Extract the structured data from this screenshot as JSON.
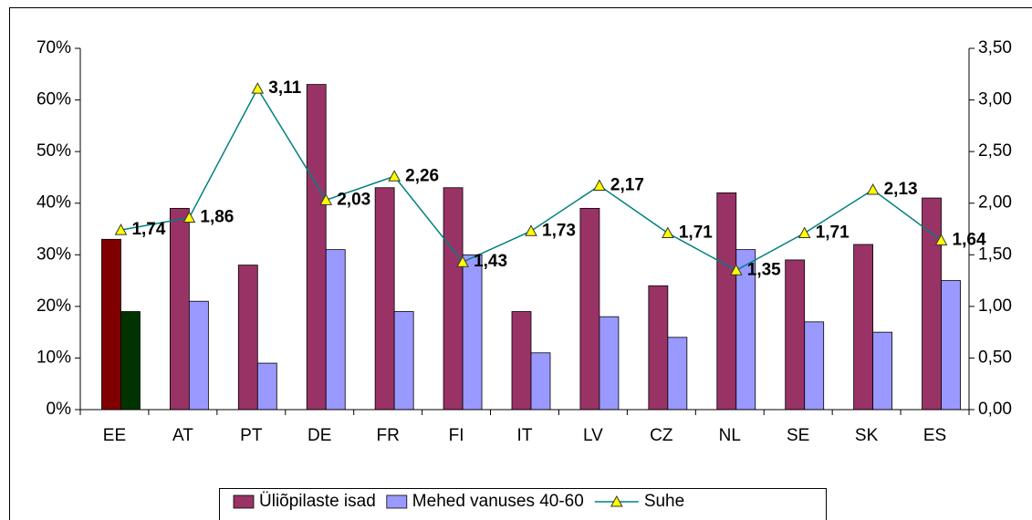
{
  "chart_data": {
    "type": "bar-line",
    "categories": [
      "EE",
      "AT",
      "PT",
      "DE",
      "FR",
      "FI",
      "IT",
      "LV",
      "CZ",
      "NL",
      "SE",
      "SK",
      "ES"
    ],
    "series": [
      {
        "name": "Üliõpilaste isad",
        "type": "bar",
        "color": "#993366",
        "colors": [
          "#800000",
          "#993366",
          "#993366",
          "#993366",
          "#993366",
          "#993366",
          "#993366",
          "#993366",
          "#993366",
          "#993366",
          "#993366",
          "#993366",
          "#993366"
        ],
        "values": [
          33,
          39,
          28,
          63,
          43,
          43,
          19,
          39,
          24,
          42,
          29,
          32,
          41
        ]
      },
      {
        "name": "Mehed vanuses 40-60",
        "type": "bar",
        "color": "#9999ff",
        "colors": [
          "#003300",
          "#9999ff",
          "#9999ff",
          "#9999ff",
          "#9999ff",
          "#9999ff",
          "#9999ff",
          "#9999ff",
          "#9999ff",
          "#9999ff",
          "#9999ff",
          "#9999ff",
          "#9999ff"
        ],
        "values": [
          19,
          21,
          9,
          31,
          19,
          30,
          11,
          18,
          14,
          31,
          17,
          15,
          25
        ]
      },
      {
        "name": "Suhe",
        "type": "line",
        "axis": "y2",
        "color": "#008080",
        "marker_color": "#ffff00",
        "values": [
          1.74,
          1.86,
          3.11,
          2.03,
          2.26,
          1.43,
          1.73,
          2.17,
          1.71,
          1.35,
          1.71,
          2.13,
          1.64
        ],
        "value_labels": [
          "1,74",
          "1,86",
          "3,11",
          "2,03",
          "2,26",
          "1,43",
          "1,73",
          "2,17",
          "1,71",
          "1,35",
          "1,71",
          "2,13",
          "1,64"
        ]
      }
    ],
    "ylim": [
      0,
      70
    ],
    "yticks": [
      {
        "value": 0,
        "label": "0%"
      },
      {
        "value": 10,
        "label": "10%"
      },
      {
        "value": 20,
        "label": "20%"
      },
      {
        "value": 30,
        "label": "30%"
      },
      {
        "value": 40,
        "label": "40%"
      },
      {
        "value": 50,
        "label": "50%"
      },
      {
        "value": 60,
        "label": "60%"
      },
      {
        "value": 70,
        "label": "70%"
      }
    ],
    "y2lim": [
      0,
      3.5
    ],
    "y2ticks": [
      {
        "value": 0,
        "label": "0,00"
      },
      {
        "value": 0.5,
        "label": "0,50"
      },
      {
        "value": 1,
        "label": "1,00"
      },
      {
        "value": 1.5,
        "label": "1,50"
      },
      {
        "value": 2,
        "label": "2,00"
      },
      {
        "value": 2.5,
        "label": "2,50"
      },
      {
        "value": 3,
        "label": "3,00"
      },
      {
        "value": 3.5,
        "label": "3,50"
      }
    ],
    "legend": "bottom"
  }
}
